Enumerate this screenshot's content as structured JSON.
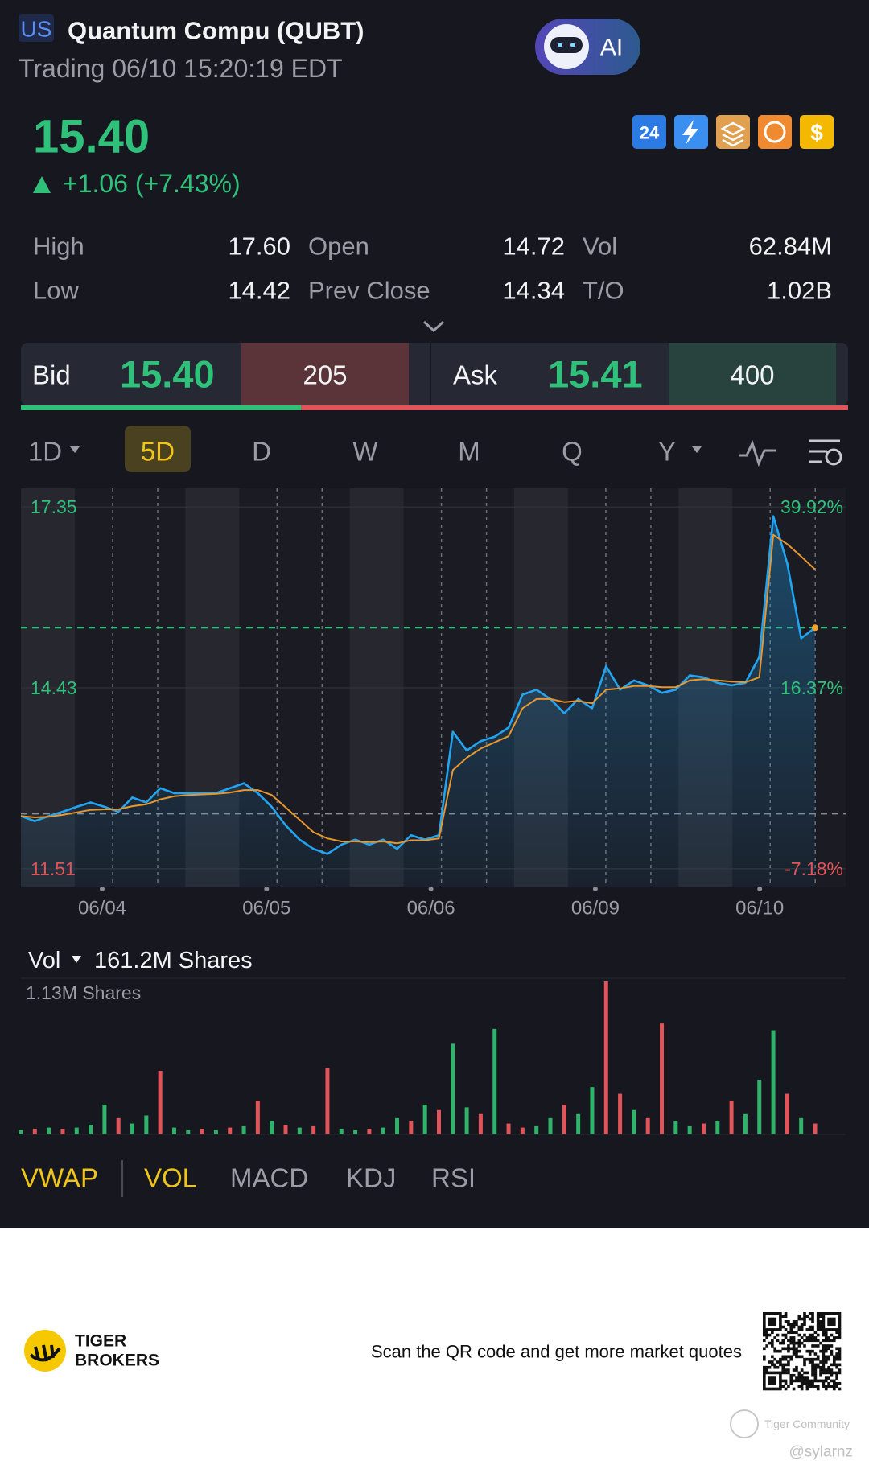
{
  "header": {
    "market": "US",
    "title": "Quantum Compu (QUBT)",
    "status": "Trading 06/10 15:20:19 EDT",
    "ai": "AI"
  },
  "quote": {
    "price": "15.40",
    "change": "+1.06 (+7.43%)",
    "badges": [
      "24",
      "$"
    ]
  },
  "stats": {
    "rows": [
      [
        "High",
        "17.60",
        "Open",
        "14.72",
        "Vol",
        "62.84M"
      ],
      [
        "Low",
        "14.42",
        "Prev Close",
        "14.34",
        "T/O",
        "1.02B"
      ]
    ]
  },
  "bid_ask": {
    "bid_label": "Bid",
    "bid": "15.40",
    "bid_size": 205,
    "ask_label": "Ask",
    "ask": "15.41",
    "ask_size": 400
  },
  "periods": {
    "items": [
      "1D",
      "5D",
      "D",
      "W",
      "M",
      "Q",
      "Y"
    ],
    "active": 1
  },
  "chart_data": [
    {
      "type": "line",
      "x_labels": [
        "06/04",
        "06/05",
        "06/06",
        "06/09",
        "06/10"
      ],
      "ylim": [
        11.21,
        17.65
      ],
      "yticks": [
        17.35,
        14.43,
        11.51
      ],
      "y2lim": [
        -9.6,
        42.34
      ],
      "y2ticks": [
        {
          "value": 39.92,
          "label": "39.92%"
        },
        {
          "value": 16.37,
          "label": "16.37%"
        },
        {
          "value": -7.18,
          "label": "-7.18%"
        }
      ],
      "hlines": [
        {
          "value": 12.4,
          "color": "#8a8c96"
        },
        {
          "value": 15.4,
          "color": "#2fc07a"
        }
      ],
      "grid": true,
      "series": [
        {
          "color": "#22a4f0",
          "values": [
            12.36,
            12.28,
            12.36,
            12.43,
            12.51,
            12.58,
            12.51,
            12.43,
            12.66,
            12.58,
            12.81,
            12.73,
            12.73,
            12.73,
            12.73,
            12.81,
            12.89,
            12.73,
            12.51,
            12.21,
            11.98,
            11.83,
            11.75,
            11.9,
            11.98,
            11.9,
            11.98,
            11.83,
            12.05,
            11.98,
            12.05,
            13.72,
            13.42,
            13.57,
            13.64,
            13.79,
            14.32,
            14.4,
            14.25,
            14.02,
            14.25,
            14.1,
            14.78,
            14.4,
            14.55,
            14.47,
            14.35,
            14.4,
            14.63,
            14.6,
            14.51,
            14.47,
            14.51,
            14.93,
            17.2,
            16.44,
            15.23,
            15.4
          ]
        },
        {
          "color": "#e8962e",
          "values": [
            12.36,
            12.34,
            12.35,
            12.38,
            12.42,
            12.46,
            12.47,
            12.47,
            12.52,
            12.55,
            12.63,
            12.68,
            12.7,
            12.71,
            12.72,
            12.74,
            12.78,
            12.78,
            12.7,
            12.5,
            12.3,
            12.1,
            12.0,
            11.95,
            11.95,
            11.94,
            11.95,
            11.92,
            11.97,
            11.97,
            12.0,
            13.1,
            13.3,
            13.45,
            13.55,
            13.65,
            14.1,
            14.25,
            14.25,
            14.2,
            14.22,
            14.18,
            14.4,
            14.42,
            14.46,
            14.46,
            14.44,
            14.44,
            14.55,
            14.57,
            14.55,
            14.53,
            14.52,
            14.6,
            16.9,
            16.75,
            16.55,
            16.34
          ]
        }
      ]
    },
    {
      "type": "bar",
      "title": "Vol",
      "total": "161.2M Shares",
      "scale_label": "1.13M Shares",
      "ylim": [
        0,
        1.13
      ],
      "series": [
        {
          "color": "#2fb36b",
          "values": [
            0.03,
            null,
            0.05,
            null,
            0.05,
            0.07,
            0.22,
            null,
            0.08,
            0.14,
            null,
            0.05,
            0.03,
            null,
            0.03,
            null,
            0.06,
            null,
            0.1,
            null,
            0.05,
            null,
            null,
            0.04,
            0.03,
            null,
            0.05,
            0.12,
            null,
            0.22,
            null,
            0.67,
            0.2,
            null,
            0.78,
            null,
            null,
            0.06,
            0.12,
            null,
            0.15,
            0.35,
            null,
            null,
            0.18,
            null,
            null,
            0.1,
            0.06,
            null,
            0.1,
            null,
            0.15,
            0.4,
            0.77,
            null,
            0.12,
            null
          ]
        },
        {
          "color": "#e0545a",
          "values": [
            null,
            0.04,
            null,
            0.04,
            null,
            null,
            null,
            0.12,
            null,
            null,
            0.47,
            null,
            null,
            0.04,
            null,
            0.05,
            null,
            0.25,
            null,
            0.07,
            null,
            0.06,
            0.49,
            null,
            null,
            0.04,
            null,
            null,
            0.1,
            null,
            0.18,
            null,
            null,
            0.15,
            null,
            0.08,
            0.05,
            null,
            null,
            0.22,
            null,
            null,
            1.13,
            0.3,
            null,
            0.12,
            0.82,
            null,
            null,
            0.08,
            null,
            0.25,
            null,
            null,
            null,
            0.3,
            null,
            0.08
          ]
        }
      ]
    }
  ],
  "indicators": {
    "items": [
      "VWAP",
      "VOL",
      "MACD",
      "KDJ",
      "RSI"
    ],
    "active": [
      0,
      1
    ]
  },
  "footer": {
    "brand": [
      "TIGER",
      "BROKERS"
    ],
    "cta": "Scan the QR code and get more market quotes",
    "watermark": "Tiger Community",
    "handle": "@sylarnz"
  }
}
